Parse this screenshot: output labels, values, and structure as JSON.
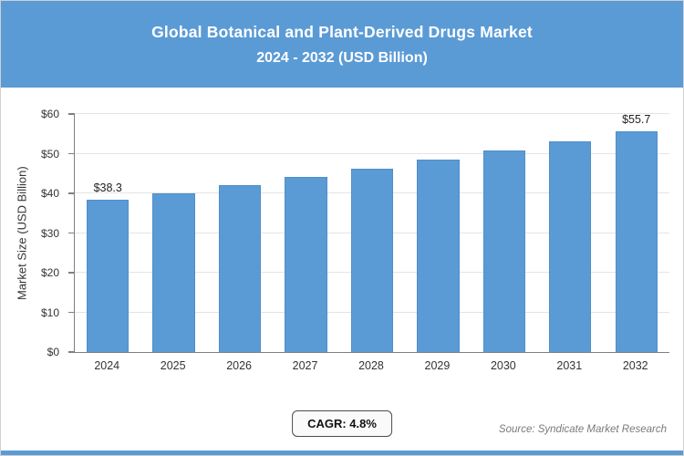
{
  "header": {
    "title_line1": "Global Botanical and Plant-Derived Drugs Market",
    "title_line2": "2024 - 2032 (USD Billion)",
    "bg_color": "#5b9bd5",
    "text_color": "#ffffff"
  },
  "chart_data": {
    "type": "bar",
    "title": "Global Botanical and Plant-Derived Drugs Market 2024 - 2032 (USD Billion)",
    "categories": [
      "2024",
      "2025",
      "2026",
      "2027",
      "2028",
      "2029",
      "2030",
      "2031",
      "2032"
    ],
    "values": [
      38.3,
      40.1,
      42.1,
      44.1,
      46.2,
      48.4,
      50.7,
      53.1,
      55.7
    ],
    "value_labels": [
      "$38.3",
      "",
      "",
      "",
      "",
      "",
      "",
      "",
      "$55.7"
    ],
    "xlabel": "",
    "ylabel": "Market Size (USD Billion)",
    "ylim": [
      0,
      60
    ],
    "ytick_step": 10,
    "ytick_labels": [
      "$0",
      "$10",
      "$20",
      "$30",
      "$40",
      "$50",
      "$60"
    ],
    "grid": true,
    "legend": "none",
    "bar_color": "#5b9bd5",
    "bar_border_color": "#4e8ecb"
  },
  "footer": {
    "cagr_label": "CAGR: 4.8%",
    "source": "Source: Syndicate Market Research"
  }
}
